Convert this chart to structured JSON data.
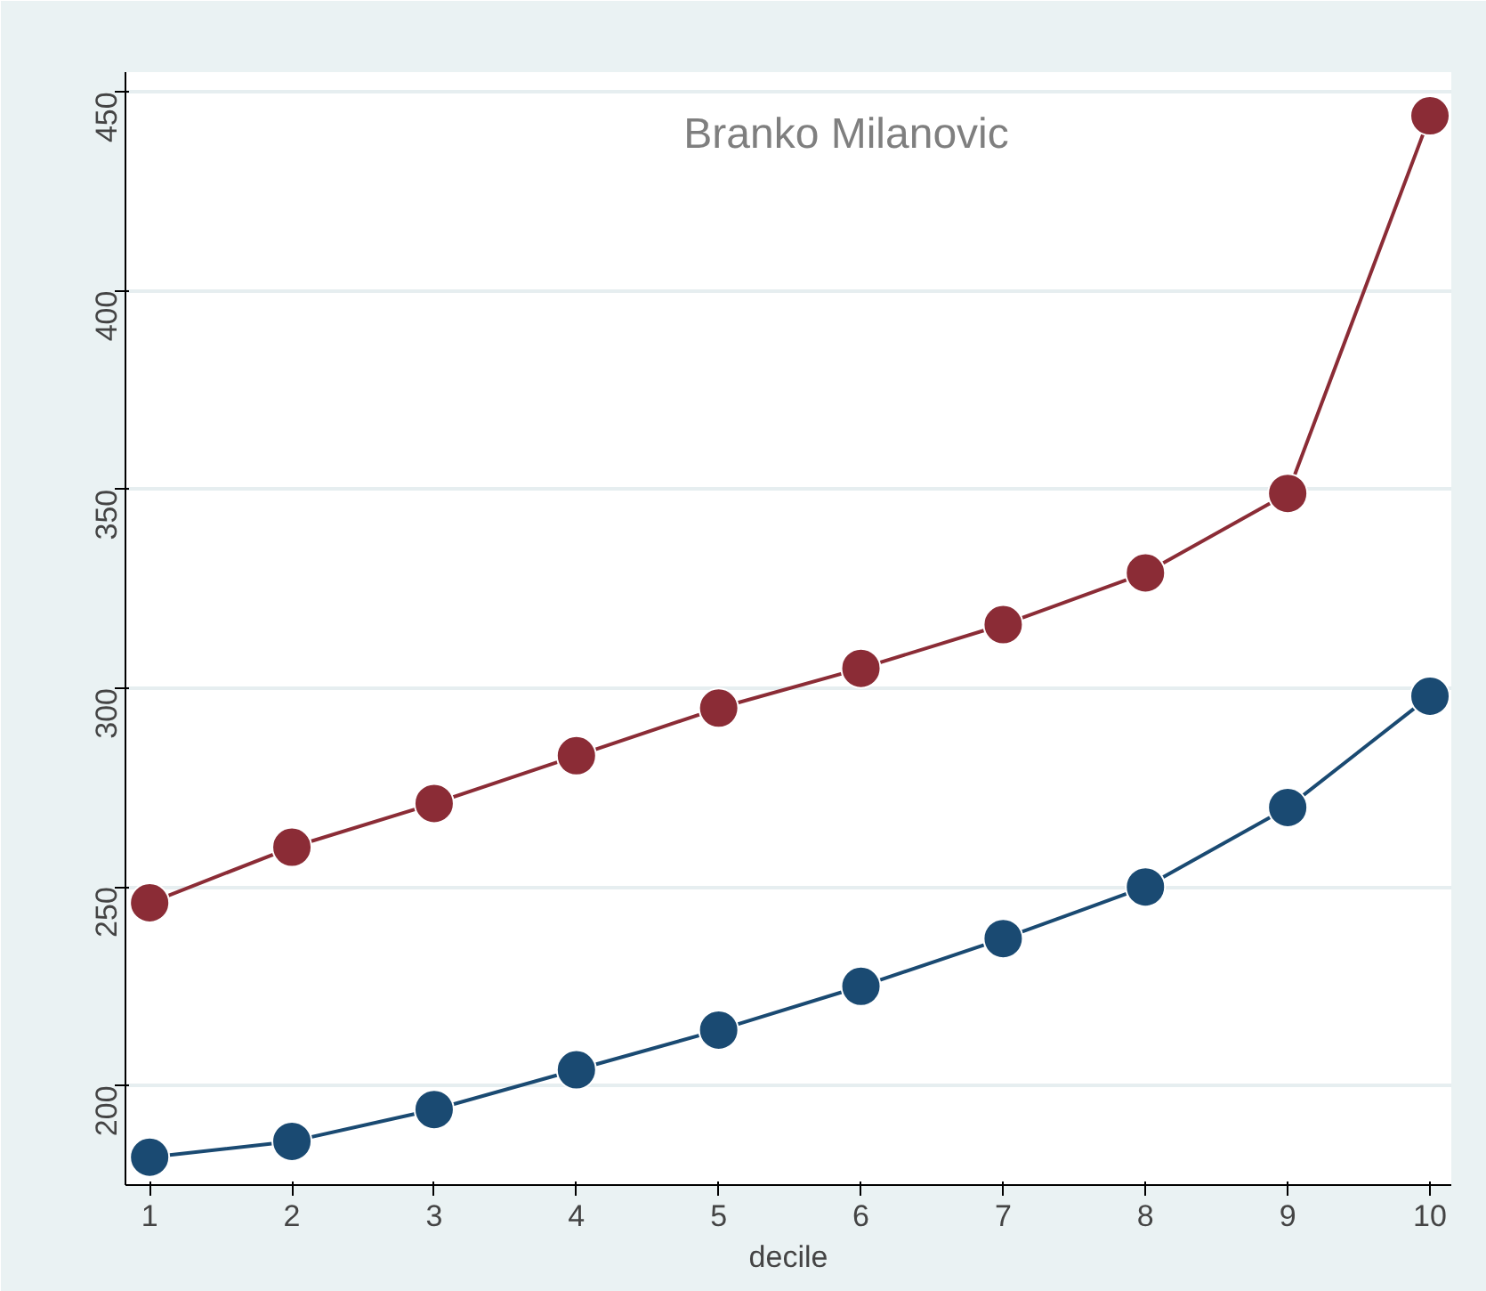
{
  "chart_data": {
    "type": "line",
    "xlabel": "decile",
    "x": [
      1,
      2,
      3,
      4,
      5,
      6,
      7,
      8,
      9,
      10
    ],
    "series": [
      {
        "color": "#8b2c36",
        "values": [
          246,
          260,
          271,
          283,
          295,
          305,
          316,
          329,
          349,
          444
        ]
      },
      {
        "color": "#1a4a72",
        "values": [
          182,
          186,
          194,
          204,
          214,
          225,
          237,
          250,
          270,
          298
        ]
      }
    ],
    "xlim": [
      0.83,
      10.15
    ],
    "xticks": [
      1,
      2,
      3,
      4,
      5,
      6,
      7,
      8,
      9,
      10
    ],
    "ylim": [
      175,
      455
    ],
    "yticks": [
      200,
      250,
      300,
      350,
      400,
      450
    ],
    "grid": "y",
    "marker": "circle",
    "line_style": "solid",
    "annotations": [
      "Branko Milanovic"
    ]
  }
}
